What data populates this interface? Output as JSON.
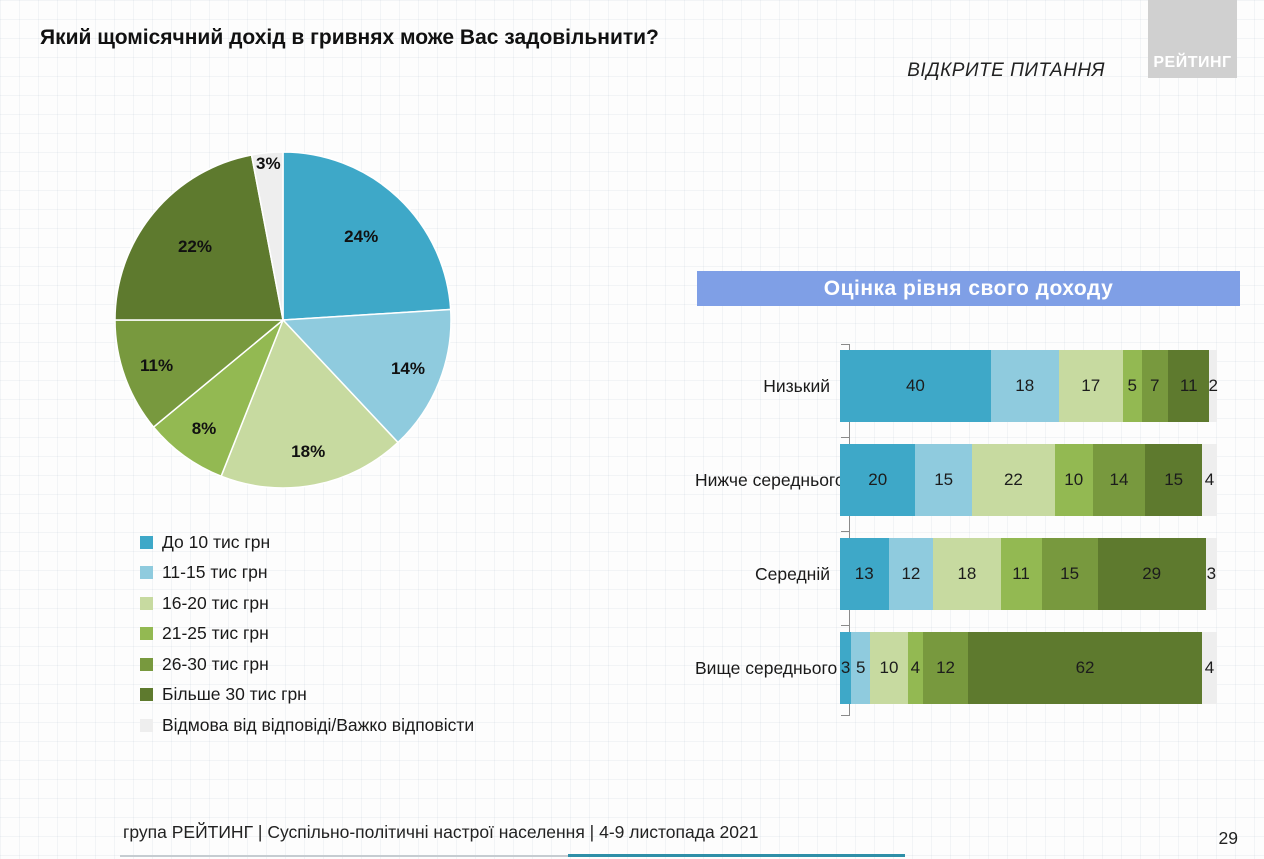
{
  "page": {
    "title": "Який щомісячний дохід в гривнях може Вас задовільнити?",
    "subtitle": "ВІДКРИТЕ ПИТАННЯ",
    "logo_text": "РЕЙТИНГ",
    "footer_text": "група РЕЙТИНГ | Суспільно-політичні настрої населення  | 4-9 листопада 2021",
    "page_number": "29"
  },
  "banner": {
    "label": "Оцінка рівня свого доходу",
    "bg_color": "#7F9FE6"
  },
  "palette": [
    "#3EA8C8",
    "#8FCBDE",
    "#C7DAA0",
    "#93B952",
    "#78993E",
    "#5E7A2E",
    "#EEEEEE"
  ],
  "chart_data": [
    {
      "type": "pie",
      "title": "Який щомісячний дохід в гривнях може Вас задовільнити?",
      "labels": [
        "До 10 тис грн",
        "11-15 тис грн",
        "16-20 тис грн",
        "21-25 тис грн",
        "26-30 тис грн",
        "Більше 30 тис грн",
        "Відмова від відповіді/Важко відповісти"
      ],
      "values": [
        24,
        14,
        18,
        8,
        11,
        22,
        3
      ],
      "value_labels": [
        "24%",
        "14%",
        "18%",
        "8%",
        "11%",
        "22%",
        "3%"
      ],
      "colors": [
        "#3EA8C8",
        "#8FCBDE",
        "#C7DAA0",
        "#93B952",
        "#78993E",
        "#5E7A2E",
        "#EEEEEE"
      ],
      "start_angle_deg": 0,
      "direction": "clockwise",
      "legend_position": "bottom-left"
    },
    {
      "type": "bar",
      "subtype": "horizontal-stacked-100",
      "title": "Оцінка рівня свого доходу",
      "categories": [
        "Низький",
        "Нижче середнього",
        "Середній",
        "Вище середнього"
      ],
      "series": [
        {
          "name": "До 10 тис грн",
          "values": [
            40,
            20,
            13,
            3
          ]
        },
        {
          "name": "11-15 тис грн",
          "values": [
            18,
            15,
            12,
            5
          ]
        },
        {
          "name": "16-20 тис грн",
          "values": [
            17,
            22,
            18,
            10
          ]
        },
        {
          "name": "21-25 тис грн",
          "values": [
            5,
            10,
            11,
            4
          ]
        },
        {
          "name": "26-30 тис грн",
          "values": [
            7,
            14,
            15,
            12
          ]
        },
        {
          "name": "Більше 30 тис грн",
          "values": [
            11,
            15,
            29,
            62
          ]
        },
        {
          "name": "Відмова від відповіді/Важко відповісти",
          "values": [
            2,
            4,
            3,
            4
          ]
        }
      ],
      "xlim": [
        0,
        100
      ],
      "grid": false,
      "value_labels_shown": true
    }
  ]
}
